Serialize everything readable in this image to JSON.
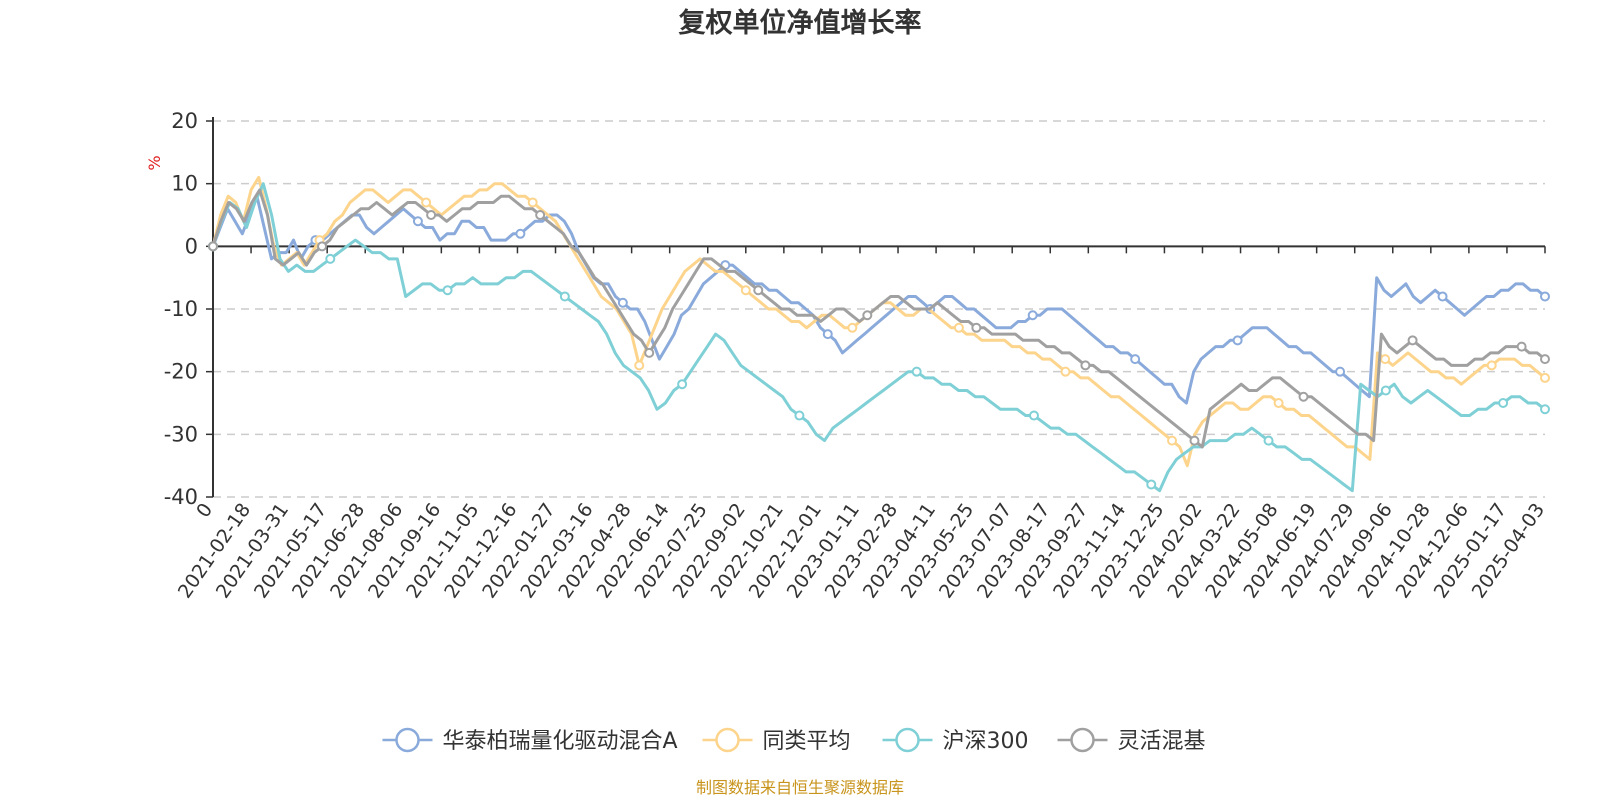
{
  "chart_data": {
    "type": "line",
    "title": "复权单位净值增长率",
    "ylabel": "%",
    "ylim": [
      -40,
      20
    ],
    "yticks": [
      20,
      10,
      0,
      -10,
      -20,
      -30,
      -40
    ],
    "x_labels": [
      "0",
      "2021-02-18",
      "2021-03-31",
      "2021-05-17",
      "2021-06-28",
      "2021-08-06",
      "2021-09-16",
      "2021-11-05",
      "2021-12-16",
      "2022-01-27",
      "2022-03-16",
      "2022-04-28",
      "2022-06-14",
      "2022-07-25",
      "2022-09-02",
      "2022-10-21",
      "2022-12-01",
      "2023-01-11",
      "2023-02-28",
      "2023-04-11",
      "2023-05-25",
      "2023-07-07",
      "2023-08-17",
      "2023-09-27",
      "2023-11-14",
      "2023-12-25",
      "2024-02-02",
      "2024-03-22",
      "2024-05-08",
      "2024-06-19",
      "2024-07-29",
      "2024-09-06",
      "2024-10-28",
      "2024-12-06",
      "2025-01-17",
      "2025-04-03"
    ],
    "series": [
      {
        "name": "华泰柏瑞量化驱动混合A",
        "color": "#8aaadb",
        "values": [
          0,
          3,
          6,
          4,
          2,
          5,
          8,
          3,
          -2,
          -1,
          -1,
          1,
          -2,
          0,
          1,
          1,
          2,
          3,
          4,
          5,
          5,
          3,
          2,
          3,
          4,
          5,
          6,
          5,
          4,
          3,
          3,
          1,
          2,
          2,
          4,
          4,
          3,
          3,
          1,
          1,
          1,
          2,
          2,
          3,
          4,
          4,
          5,
          5,
          4,
          2,
          -1,
          -3,
          -5,
          -6,
          -6,
          -8,
          -9,
          -10,
          -10,
          -12,
          -15,
          -18,
          -16,
          -14,
          -11,
          -10,
          -8,
          -6,
          -5,
          -4,
          -3,
          -3,
          -4,
          -5,
          -6,
          -6,
          -7,
          -7,
          -8,
          -9,
          -9,
          -10,
          -11,
          -13,
          -14,
          -15,
          -17,
          -16,
          -15,
          -14,
          -13,
          -12,
          -11,
          -10,
          -9,
          -8,
          -8,
          -9,
          -10,
          -9,
          -8,
          -8,
          -9,
          -10,
          -10,
          -11,
          -12,
          -13,
          -13,
          -13,
          -12,
          -12,
          -11,
          -11,
          -10,
          -10,
          -10,
          -11,
          -12,
          -13,
          -14,
          -15,
          -16,
          -16,
          -17,
          -17,
          -18,
          -19,
          -20,
          -21,
          -22,
          -22,
          -24,
          -25,
          -20,
          -18,
          -17,
          -16,
          -16,
          -15,
          -15,
          -14,
          -13,
          -13,
          -13,
          -14,
          -15,
          -16,
          -16,
          -17,
          -17,
          -18,
          -19,
          -20,
          -20,
          -21,
          -22,
          -23,
          -24,
          -5,
          -7,
          -8,
          -7,
          -6,
          -8,
          -9,
          -8,
          -7,
          -8,
          -9,
          -10,
          -11,
          -10,
          -9,
          -8,
          -8,
          -7,
          -7,
          -6,
          -6,
          -7,
          -7,
          -8
        ]
      },
      {
        "name": "同类平均",
        "color": "#fdd48c",
        "values": [
          0,
          5,
          8,
          7,
          4,
          9,
          11,
          6,
          0,
          -3,
          -2,
          -1,
          -3,
          -1,
          1,
          2,
          4,
          5,
          7,
          8,
          9,
          9,
          8,
          7,
          8,
          9,
          9,
          8,
          7,
          6,
          5,
          6,
          7,
          8,
          8,
          9,
          9,
          10,
          10,
          9,
          8,
          8,
          7,
          6,
          5,
          4,
          2,
          0,
          -2,
          -4,
          -6,
          -8,
          -9,
          -10,
          -12,
          -14,
          -19,
          -16,
          -13,
          -10,
          -8,
          -6,
          -4,
          -3,
          -2,
          -3,
          -4,
          -4,
          -5,
          -6,
          -7,
          -8,
          -9,
          -10,
          -10,
          -11,
          -12,
          -12,
          -13,
          -12,
          -11,
          -11,
          -12,
          -13,
          -13,
          -12,
          -11,
          -10,
          -9,
          -9,
          -10,
          -11,
          -11,
          -10,
          -10,
          -11,
          -12,
          -13,
          -13,
          -14,
          -14,
          -15,
          -15,
          -15,
          -15,
          -16,
          -16,
          -17,
          -17,
          -18,
          -18,
          -19,
          -20,
          -20,
          -21,
          -21,
          -22,
          -23,
          -24,
          -24,
          -25,
          -26,
          -27,
          -28,
          -29,
          -30,
          -31,
          -32,
          -35,
          -30,
          -28,
          -27,
          -26,
          -25,
          -25,
          -26,
          -26,
          -25,
          -24,
          -24,
          -25,
          -26,
          -26,
          -27,
          -27,
          -28,
          -29,
          -30,
          -31,
          -32,
          -32,
          -33,
          -34,
          -17,
          -18,
          -19,
          -18,
          -17,
          -18,
          -19,
          -20,
          -20,
          -21,
          -21,
          -22,
          -21,
          -20,
          -19,
          -19,
          -18,
          -18,
          -18,
          -19,
          -19,
          -20,
          -21
        ]
      },
      {
        "name": "沪深300",
        "color": "#7fd0d6",
        "values": [
          0,
          4,
          7,
          6,
          3,
          7,
          10,
          5,
          -2,
          -4,
          -3,
          -4,
          -4,
          -3,
          -2,
          -1,
          0,
          1,
          0,
          -1,
          -1,
          -2,
          -2,
          -8,
          -7,
          -6,
          -6,
          -7,
          -7,
          -6,
          -6,
          -5,
          -6,
          -6,
          -6,
          -5,
          -5,
          -4,
          -4,
          -5,
          -6,
          -7,
          -8,
          -9,
          -10,
          -11,
          -12,
          -14,
          -17,
          -19,
          -20,
          -21,
          -23,
          -26,
          -25,
          -23,
          -22,
          -20,
          -18,
          -16,
          -14,
          -15,
          -17,
          -19,
          -20,
          -21,
          -22,
          -23,
          -24,
          -26,
          -27,
          -28,
          -30,
          -31,
          -29,
          -28,
          -27,
          -26,
          -25,
          -24,
          -23,
          -22,
          -21,
          -20,
          -20,
          -21,
          -21,
          -22,
          -22,
          -23,
          -23,
          -24,
          -24,
          -25,
          -26,
          -26,
          -26,
          -27,
          -27,
          -28,
          -29,
          -29,
          -30,
          -30,
          -31,
          -32,
          -33,
          -34,
          -35,
          -36,
          -36,
          -37,
          -38,
          -39,
          -36,
          -34,
          -33,
          -32,
          -32,
          -31,
          -31,
          -31,
          -30,
          -30,
          -29,
          -30,
          -31,
          -32,
          -32,
          -33,
          -34,
          -34,
          -35,
          -36,
          -37,
          -38,
          -39,
          -22,
          -23,
          -24,
          -23,
          -22,
          -24,
          -25,
          -24,
          -23,
          -24,
          -25,
          -26,
          -27,
          -27,
          -26,
          -26,
          -25,
          -25,
          -24,
          -24,
          -25,
          -25,
          -26
        ]
      },
      {
        "name": "灵活混基",
        "color": "#a0a0a0",
        "values": [
          0,
          4,
          7,
          6,
          4,
          7,
          9,
          5,
          -2,
          -3,
          -2,
          -1,
          -3,
          -1,
          0,
          1,
          3,
          4,
          5,
          6,
          6,
          7,
          6,
          5,
          6,
          7,
          7,
          6,
          5,
          5,
          4,
          5,
          6,
          6,
          7,
          7,
          7,
          8,
          8,
          7,
          6,
          6,
          5,
          4,
          3,
          2,
          0,
          -1,
          -3,
          -5,
          -6,
          -8,
          -10,
          -12,
          -14,
          -15,
          -17,
          -15,
          -13,
          -10,
          -8,
          -6,
          -4,
          -2,
          -2,
          -3,
          -4,
          -4,
          -5,
          -6,
          -7,
          -8,
          -9,
          -10,
          -10,
          -11,
          -11,
          -11,
          -12,
          -11,
          -10,
          -10,
          -11,
          -12,
          -11,
          -10,
          -9,
          -8,
          -8,
          -9,
          -10,
          -10,
          -10,
          -9,
          -10,
          -11,
          -12,
          -12,
          -13,
          -13,
          -14,
          -14,
          -14,
          -14,
          -15,
          -15,
          -15,
          -16,
          -16,
          -17,
          -17,
          -18,
          -19,
          -19,
          -20,
          -20,
          -21,
          -22,
          -23,
          -24,
          -25,
          -26,
          -27,
          -28,
          -29,
          -30,
          -31,
          -32,
          -26,
          -25,
          -24,
          -23,
          -22,
          -23,
          -23,
          -22,
          -21,
          -21,
          -22,
          -23,
          -24,
          -24,
          -25,
          -26,
          -27,
          -28,
          -29,
          -30,
          -30,
          -31,
          -14,
          -16,
          -17,
          -16,
          -15,
          -16,
          -17,
          -18,
          -18,
          -19,
          -19,
          -19,
          -18,
          -18,
          -17,
          -17,
          -16,
          -16,
          -16,
          -17,
          -17,
          -18
        ]
      }
    ],
    "legend_position": "bottom-center"
  },
  "source_text": "制图数据来自恒生聚源数据库"
}
